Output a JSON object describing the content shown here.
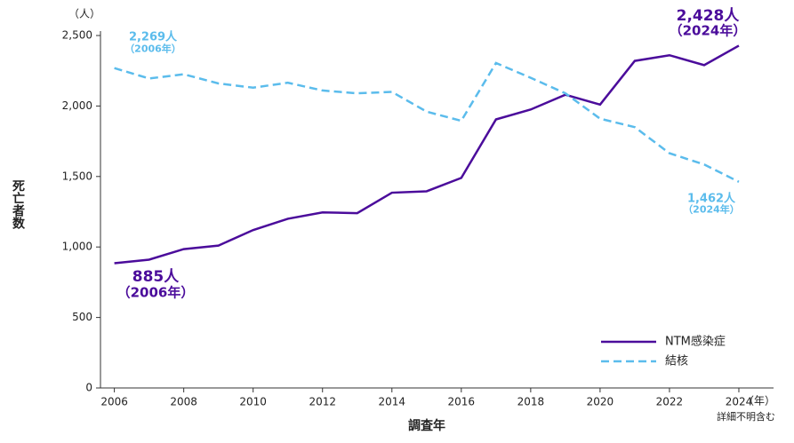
{
  "chart_data": {
    "type": "line",
    "y_unit": "（人）",
    "ylabel": "死亡者数",
    "xlabel": "調査年",
    "x_unit": "（年）",
    "note": "詳細不明含む",
    "x": [
      2006,
      2007,
      2008,
      2009,
      2010,
      2011,
      2012,
      2013,
      2014,
      2015,
      2016,
      2017,
      2018,
      2019,
      2020,
      2021,
      2022,
      2023,
      2024
    ],
    "series": [
      {
        "name": "NTM感染症",
        "color": "#4b0c9b",
        "dash": false,
        "values": [
          885,
          910,
          985,
          1010,
          1120,
          1200,
          1245,
          1240,
          1385,
          1395,
          1490,
          1905,
          1975,
          2080,
          2010,
          2320,
          2360,
          2290,
          2428
        ]
      },
      {
        "name": "結核",
        "color": "#5bbcec",
        "dash": true,
        "values": [
          2269,
          2195,
          2225,
          2160,
          2130,
          2165,
          2110,
          2090,
          2100,
          1960,
          1895,
          2305,
          2200,
          2090,
          1910,
          1850,
          1665,
          1585,
          1462
        ]
      }
    ],
    "xlim": [
      2005.6,
      2025
    ],
    "xticks": [
      2006,
      2008,
      2010,
      2012,
      2014,
      2016,
      2018,
      2020,
      2022,
      2024
    ],
    "ylim": [
      0,
      2500
    ],
    "yticks": [
      0,
      500,
      {
        "value": 1000,
        "label": "1,000"
      },
      {
        "value": 1500,
        "label": "1,500"
      },
      {
        "value": 2000,
        "label": "2,000"
      },
      {
        "value": 2500,
        "label": "2,500"
      }
    ],
    "legend": "lower right",
    "annotations": [
      {
        "series": 1,
        "lines": [
          "2,269人",
          "（2006年）"
        ]
      },
      {
        "series": 0,
        "lines": [
          "885人",
          "（2006年）"
        ]
      },
      {
        "series": 0,
        "lines": [
          "2,428人",
          "（2024年）"
        ]
      },
      {
        "series": 1,
        "lines": [
          "1,462人",
          "（2024年）"
        ]
      }
    ]
  }
}
